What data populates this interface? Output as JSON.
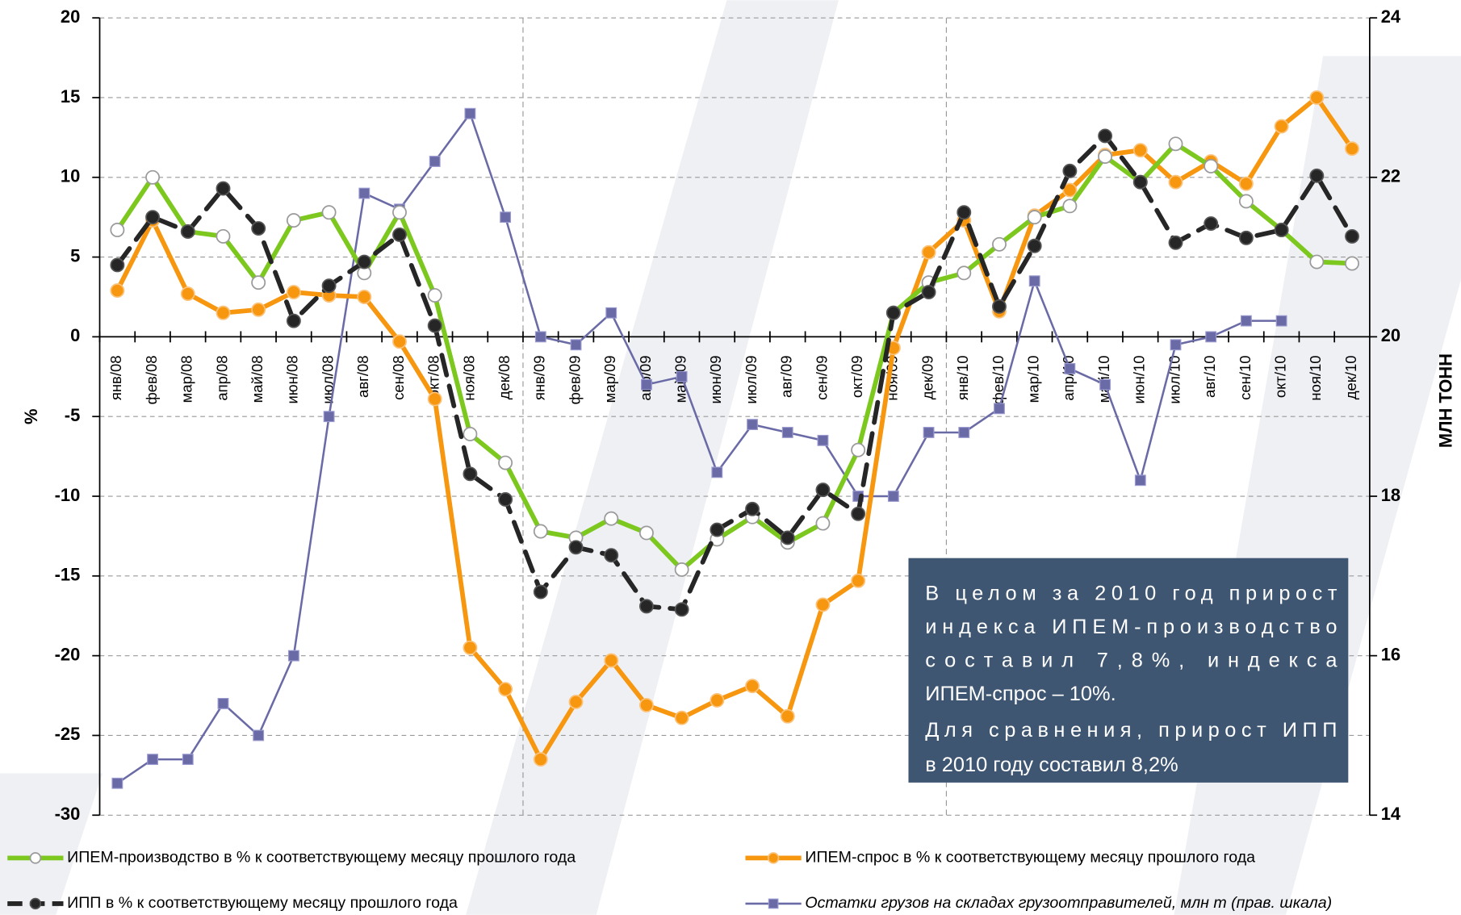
{
  "chart_data": {
    "type": "line",
    "categories": [
      "янв/08",
      "фев/08",
      "мар/08",
      "апр/08",
      "май/08",
      "июн/08",
      "июл/08",
      "авг/08",
      "сен/08",
      "окт/08",
      "ноя/08",
      "дек/08",
      "янв/09",
      "фев/09",
      "мар/09",
      "апр/09",
      "май/09",
      "июн/09",
      "июл/09",
      "авг/09",
      "сен/09",
      "окт/09",
      "ноя/09",
      "дек/09",
      "янв/10",
      "фев/10",
      "мар/10",
      "апр/10",
      "май/10",
      "июн/10",
      "июл/10",
      "авг/10",
      "сен/10",
      "окт/10",
      "ноя/10",
      "дек/10"
    ],
    "series": [
      {
        "name": "ИПЕМ-производство в % к соответствующему месяцу прошлого года",
        "color": "#7dc81e",
        "marker": "circle",
        "marker_fill": "#ffffff",
        "marker_stroke": "#9a9a9a",
        "line_style": "solid",
        "values": [
          6.7,
          10.0,
          6.6,
          6.3,
          3.4,
          7.3,
          7.8,
          4.0,
          7.8,
          2.6,
          -6.1,
          -7.9,
          -12.2,
          -12.6,
          -11.4,
          -12.3,
          -14.6,
          -12.7,
          -11.3,
          -12.9,
          -11.7,
          -7.1,
          1.5,
          3.4,
          4.0,
          5.8,
          7.5,
          8.2,
          11.3,
          9.7,
          12.1,
          10.7,
          8.5,
          6.7,
          4.7,
          4.6
        ]
      },
      {
        "name": "ИПЕМ-спрос в % к соответствующему месяцу прошлого года",
        "color": "#f7960f",
        "marker": "circle",
        "marker_fill": "#f7960f",
        "marker_stroke": "#fbc27a",
        "line_style": "solid",
        "values": [
          2.9,
          7.3,
          2.7,
          1.5,
          1.7,
          2.8,
          2.6,
          2.5,
          -0.3,
          -3.9,
          -19.5,
          -22.1,
          -26.5,
          -22.9,
          -20.3,
          -23.1,
          -23.9,
          -22.8,
          -21.9,
          -23.8,
          -16.8,
          -15.3,
          -0.7,
          5.3,
          7.3,
          1.6,
          7.6,
          9.2,
          11.4,
          11.7,
          9.7,
          11.0,
          9.6,
          13.2,
          15.0,
          11.8
        ]
      },
      {
        "name": "ИПП в % к соответствующему месяцу прошлого года",
        "color": "#262626",
        "marker": "circle",
        "marker_fill": "#262626",
        "marker_stroke": "#555555",
        "line_style": "dashed",
        "values": [
          4.5,
          7.5,
          6.6,
          9.3,
          6.8,
          1.0,
          3.2,
          4.7,
          6.4,
          0.7,
          -8.6,
          -10.2,
          -16.0,
          -13.2,
          -13.7,
          -16.9,
          -17.1,
          -12.1,
          -10.8,
          -12.6,
          -9.6,
          -11.1,
          1.5,
          2.8,
          7.8,
          1.9,
          5.7,
          10.4,
          12.6,
          9.7,
          5.9,
          7.1,
          6.2,
          6.7,
          10.1,
          6.3
        ]
      },
      {
        "name": "Остатки грузов на складах грузоотправителей, млн т (прав. шкала)",
        "color": "#6a6aa6",
        "marker": "square",
        "marker_fill": "#6a6aa6",
        "marker_stroke": "#9a9ad0",
        "line_style": "thin",
        "axis": "y2",
        "font_style": "italic",
        "values": [
          14.4,
          14.7,
          14.7,
          15.4,
          15.0,
          16.0,
          19.0,
          21.8,
          21.6,
          22.2,
          22.8,
          21.5,
          20.0,
          19.9,
          20.3,
          19.4,
          19.5,
          18.3,
          18.9,
          18.8,
          18.7,
          18.0,
          18.0,
          18.8,
          18.8,
          19.1,
          20.7,
          19.6,
          19.4,
          18.2,
          19.9,
          20.0,
          20.2,
          20.2,
          null,
          null
        ]
      }
    ],
    "ylabel": "%",
    "y2label": "МЛН ТОНН",
    "ylim": [
      -30,
      20
    ],
    "yticks": [
      -30,
      -25,
      -20,
      -15,
      -10,
      -5,
      0,
      5,
      10,
      15,
      20
    ],
    "y2lim": [
      14,
      24
    ],
    "y2ticks": [
      14,
      16,
      18,
      20,
      22,
      24
    ],
    "grid": true,
    "annotation": [
      "В целом за 2010 год прирост",
      "индекса ИПЕМ-производство",
      "составил 7,8%, индекса",
      "ИПЕМ-спрос – 10%.",
      "Для сравнения, прирост ИПП",
      "в 2010 году составил 8,2%"
    ]
  }
}
